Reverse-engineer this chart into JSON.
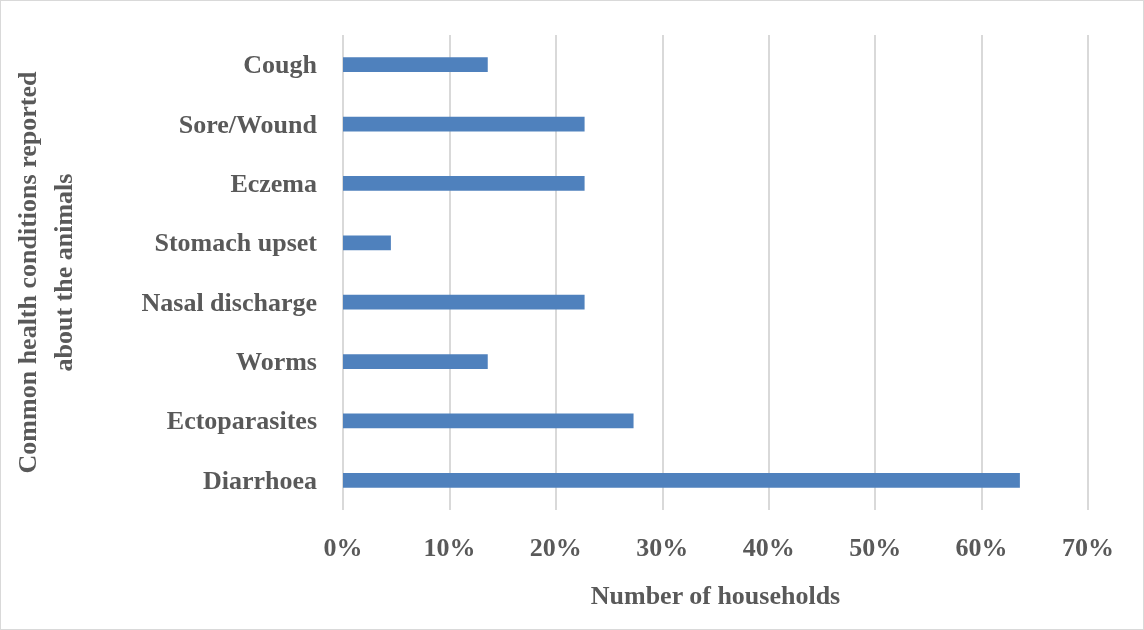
{
  "chart_data": {
    "type": "bar",
    "orientation": "horizontal",
    "categories": [
      "Cough",
      "Sore/Wound",
      "Eczema",
      "Stomach upset",
      "Nasal discharge",
      "Worms",
      "Ectoparasites",
      "Diarrhoea"
    ],
    "values": [
      13.6,
      22.7,
      22.7,
      4.5,
      22.7,
      13.6,
      27.3,
      63.6
    ],
    "color": "#4f81bd",
    "xlabel": "Number of households",
    "ylabel": "Common health conditions reported about the animals",
    "xlim": [
      0,
      70
    ],
    "xticks": [
      {
        "value": 0,
        "label": "0%"
      },
      {
        "value": 10,
        "label": "10%"
      },
      {
        "value": 20,
        "label": "20%"
      },
      {
        "value": 30,
        "label": "30%"
      },
      {
        "value": 40,
        "label": "40%"
      },
      {
        "value": 50,
        "label": "50%"
      },
      {
        "value": 60,
        "label": "60%"
      },
      {
        "value": 70,
        "label": "70%"
      }
    ],
    "grid": "x"
  }
}
